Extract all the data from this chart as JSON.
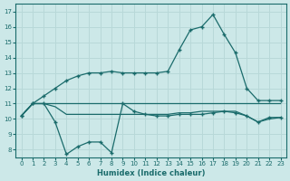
{
  "xlabel": "Humidex (Indice chaleur)",
  "background_color": "#cce8e8",
  "grid_color": "#b8d8d8",
  "line_color": "#1a6b6b",
  "x_ticks": [
    0,
    1,
    2,
    3,
    4,
    5,
    6,
    7,
    8,
    9,
    10,
    11,
    12,
    13,
    14,
    15,
    16,
    17,
    18,
    19,
    20,
    21,
    22,
    23
  ],
  "y_ticks": [
    8,
    9,
    10,
    11,
    12,
    13,
    14,
    15,
    16,
    17
  ],
  "ylim": [
    7.5,
    17.5
  ],
  "xlim": [
    -0.5,
    23.5
  ],
  "main_y": [
    10.2,
    11.0,
    11.5,
    12.0,
    12.5,
    12.8,
    13.0,
    13.0,
    13.1,
    13.0,
    13.0,
    13.0,
    13.0,
    13.1,
    14.5,
    15.8,
    16.0,
    16.8,
    15.5,
    14.3,
    12.0,
    11.2,
    11.2,
    11.2
  ],
  "low_y": [
    10.2,
    11.0,
    11.0,
    9.8,
    7.7,
    8.2,
    8.5,
    8.5,
    7.8,
    11.0,
    10.5,
    10.3,
    10.2,
    10.2,
    10.3,
    10.3,
    10.3,
    10.4,
    10.5,
    10.4,
    10.2,
    9.8,
    10.1,
    10.1
  ],
  "flat11_y": [
    10.2,
    11.0,
    11.0,
    11.0,
    11.0,
    11.0,
    11.0,
    11.0,
    11.0,
    11.0,
    11.0,
    11.0,
    11.0,
    11.0,
    11.0,
    11.0,
    11.0,
    11.0,
    11.0,
    11.0,
    11.0,
    11.0,
    11.0,
    11.0
  ],
  "flat10_y": [
    10.2,
    11.0,
    11.0,
    10.8,
    10.3,
    10.3,
    10.3,
    10.3,
    10.3,
    10.3,
    10.3,
    10.3,
    10.3,
    10.3,
    10.4,
    10.4,
    10.5,
    10.5,
    10.5,
    10.5,
    10.2,
    9.8,
    10.0,
    10.1
  ]
}
